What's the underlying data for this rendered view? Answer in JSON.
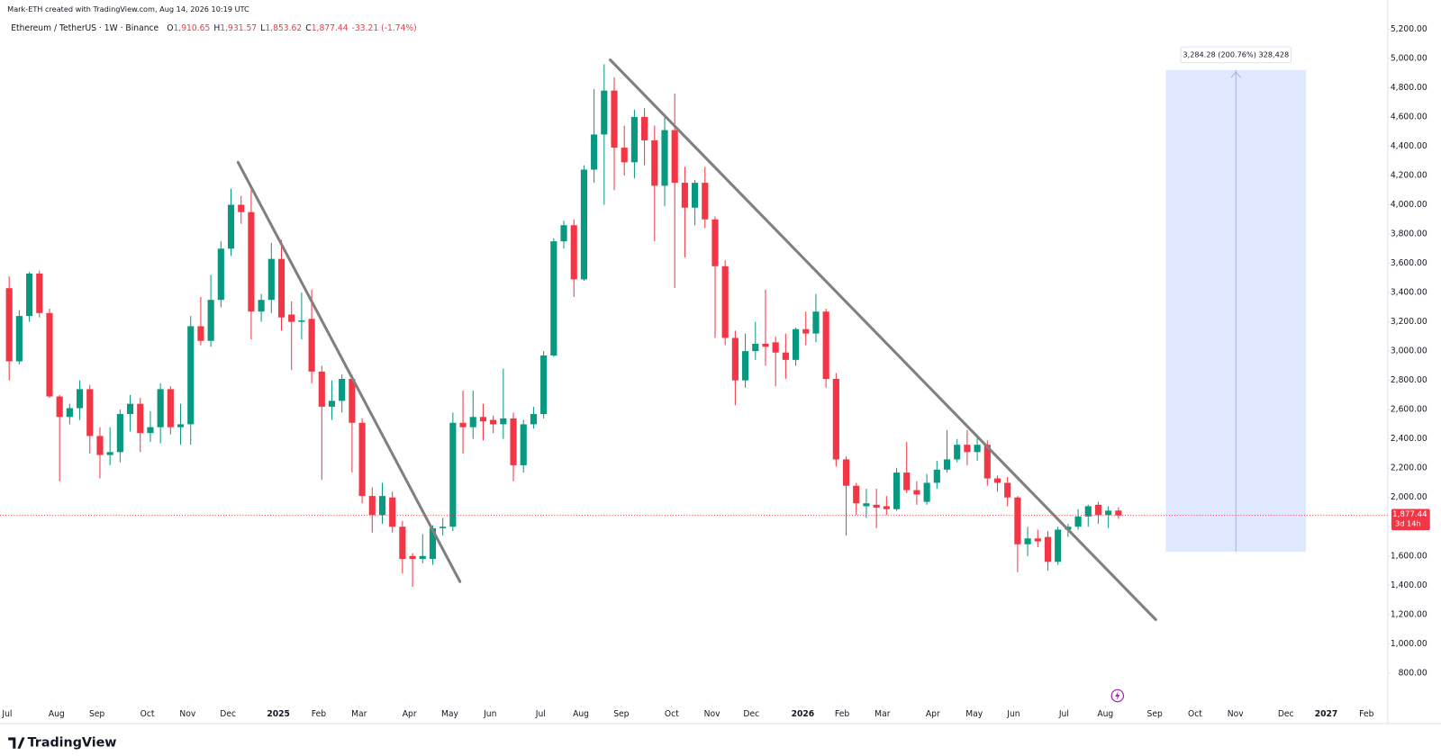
{
  "header": {
    "credit": "Mark-ETH created with TradingView.com, Aug 14, 2026 10:19 UTC",
    "symbol": "Ethereum / TetherUS · 1W · Binance",
    "ohlc": [
      {
        "label": "O",
        "value": "1,910.65"
      },
      {
        "label": "H",
        "value": "1,931.57"
      },
      {
        "label": "L",
        "value": "1,853.62"
      },
      {
        "label": "C",
        "value": "1,877.44"
      }
    ],
    "change": "-33.21 (-1.74%)"
  },
  "footer": {
    "logo": "TradingView"
  },
  "chart_data": {
    "type": "candlestick",
    "up_color": "#089981",
    "down_color": "#f23645",
    "grid": false,
    "open": [
      3430,
      2930,
      3240,
      3530,
      3260,
      2690,
      2550,
      2610,
      2740,
      2420,
      2290,
      2310,
      2570,
      2640,
      2440,
      2480,
      2740,
      2480,
      2500,
      3170,
      3070,
      3350,
      3700,
      4000,
      3950,
      3270,
      3350,
      3630,
      3250,
      3200,
      3220,
      2860,
      2620,
      2660,
      2810,
      2510,
      2010,
      1880,
      2000,
      1800,
      1600,
      1580,
      1580,
      1790,
      1800,
      2510,
      2480,
      2550,
      2530,
      2500,
      2540,
      2220,
      2500,
      2570,
      2970,
      3750,
      3860,
      3490,
      4240,
      4480,
      4780,
      4390,
      4290,
      4600,
      4440,
      4130,
      4510,
      4150,
      3980,
      4150,
      3900,
      3580,
      3090,
      2800,
      3000,
      3050,
      3060,
      2990,
      2940,
      3150,
      3120,
      3270,
      2810,
      2260,
      2080,
      1940,
      1950,
      1940,
      1920,
      2170,
      2050,
      1970,
      2100,
      2190,
      2260,
      2360,
      2310,
      2360,
      2130,
      2100,
      2000,
      1680,
      1720,
      1730,
      1560,
      1780,
      1800,
      1870,
      1950,
      1880,
      1910.65
    ],
    "high": [
      3510,
      3280,
      3540,
      3550,
      3290,
      2700,
      2640,
      2800,
      2770,
      2480,
      2480,
      2600,
      2700,
      2680,
      2590,
      2780,
      2760,
      2640,
      3240,
      3370,
      3520,
      3750,
      4110,
      4060,
      4100,
      3390,
      3740,
      3760,
      3340,
      3400,
      3420,
      2900,
      2800,
      2840,
      2840,
      2540,
      2070,
      2100,
      2040,
      1840,
      1620,
      1750,
      1810,
      1860,
      2580,
      2730,
      2730,
      2640,
      2560,
      2880,
      2580,
      2530,
      2620,
      3000,
      3770,
      3890,
      3900,
      4270,
      4790,
      4960,
      4870,
      4540,
      4650,
      4660,
      4540,
      4600,
      4760,
      4260,
      4170,
      4260,
      3920,
      3620,
      3140,
      3120,
      3200,
      3420,
      3100,
      3120,
      3160,
      3270,
      3390,
      3290,
      2850,
      2280,
      2100,
      2060,
      2060,
      2010,
      2200,
      2380,
      2110,
      2160,
      2250,
      2460,
      2400,
      2460,
      2430,
      2390,
      2150,
      2140,
      2010,
      1800,
      1780,
      1770,
      1800,
      1820,
      1920,
      1950,
      1970,
      1940,
      1931.57
    ],
    "low": [
      2800,
      2910,
      3200,
      3230,
      2680,
      2110,
      2500,
      2530,
      2300,
      2130,
      2220,
      2240,
      2450,
      2310,
      2380,
      2370,
      2430,
      2360,
      2360,
      3040,
      3030,
      3300,
      3650,
      3870,
      3080,
      3200,
      3260,
      3140,
      2870,
      3080,
      2780,
      2120,
      2530,
      2580,
      2170,
      1960,
      1760,
      1820,
      1760,
      1480,
      1390,
      1550,
      1540,
      1740,
      1770,
      2300,
      2400,
      2390,
      2440,
      2400,
      2110,
      2170,
      2470,
      2540,
      2960,
      3700,
      3370,
      3480,
      4150,
      4000,
      4100,
      4200,
      4180,
      4270,
      3750,
      3990,
      3430,
      3640,
      3860,
      3840,
      3090,
      3040,
      2630,
      2750,
      2940,
      2900,
      2760,
      2810,
      2900,
      3040,
      3060,
      2750,
      2210,
      1740,
      1880,
      1860,
      1790,
      1880,
      1910,
      2030,
      1950,
      1950,
      2060,
      2170,
      2240,
      2220,
      2250,
      2080,
      2040,
      1940,
      1490,
      1600,
      1660,
      1500,
      1540,
      1730,
      1780,
      1800,
      1820,
      1790,
      1853.62
    ],
    "close": [
      2930,
      3240,
      3530,
      3260,
      2690,
      2550,
      2610,
      2740,
      2420,
      2290,
      2310,
      2570,
      2640,
      2440,
      2480,
      2740,
      2480,
      2500,
      3170,
      3070,
      3350,
      3700,
      4000,
      3950,
      3270,
      3350,
      3630,
      3230,
      3200,
      3210,
      2860,
      2620,
      2660,
      2810,
      2510,
      2010,
      1880,
      2010,
      1800,
      1580,
      1580,
      1600,
      1790,
      1800,
      2510,
      2480,
      2550,
      2520,
      2500,
      2540,
      2220,
      2500,
      2570,
      2970,
      3750,
      3860,
      3490,
      4240,
      4480,
      4780,
      4390,
      4290,
      4600,
      4440,
      4130,
      4510,
      4150,
      3980,
      4150,
      3900,
      3580,
      3090,
      2800,
      3000,
      3050,
      3030,
      2990,
      2940,
      3150,
      3120,
      3270,
      2810,
      2260,
      2080,
      1960,
      1960,
      1930,
      1920,
      2170,
      2050,
      2020,
      2100,
      2190,
      2260,
      2360,
      2310,
      2360,
      2130,
      2100,
      2000,
      1680,
      1720,
      1700,
      1560,
      1780,
      1800,
      1870,
      1940,
      1880,
      1910,
      1877.44
    ],
    "xlim": [
      -0.91,
      136.7
    ],
    "ylim": [
      582,
      5399
    ],
    "xticks": [
      {
        "value": -0.2,
        "label": "Jul"
      },
      {
        "value": 4.7,
        "label": "Aug"
      },
      {
        "value": 8.7,
        "label": "Sep"
      },
      {
        "value": 13.7,
        "label": "Oct"
      },
      {
        "value": 17.7,
        "label": "Nov"
      },
      {
        "value": 21.7,
        "label": "Dec"
      },
      {
        "value": 26.7,
        "label": "2025"
      },
      {
        "value": 30.7,
        "label": "Feb"
      },
      {
        "value": 34.7,
        "label": "Mar"
      },
      {
        "value": 39.7,
        "label": "Apr"
      },
      {
        "value": 43.7,
        "label": "May"
      },
      {
        "value": 47.7,
        "label": "Jun"
      },
      {
        "value": 52.7,
        "label": "Jul"
      },
      {
        "value": 56.7,
        "label": "Aug"
      },
      {
        "value": 60.7,
        "label": "Sep"
      },
      {
        "value": 65.7,
        "label": "Oct"
      },
      {
        "value": 69.7,
        "label": "Nov"
      },
      {
        "value": 73.6,
        "label": "Dec"
      },
      {
        "value": 78.7,
        "label": "2026"
      },
      {
        "value": 82.6,
        "label": "Feb"
      },
      {
        "value": 86.6,
        "label": "Mar"
      },
      {
        "value": 91.6,
        "label": "Apr"
      },
      {
        "value": 95.7,
        "label": "May"
      },
      {
        "value": 99.6,
        "label": "Jun"
      },
      {
        "value": 104.6,
        "label": "Jul"
      },
      {
        "value": 108.7,
        "label": "Aug"
      },
      {
        "value": 113.6,
        "label": "Sep"
      },
      {
        "value": 117.6,
        "label": "Oct"
      },
      {
        "value": 121.6,
        "label": "Nov"
      },
      {
        "value": 126.6,
        "label": "Dec"
      },
      {
        "value": 130.6,
        "label": "2027"
      },
      {
        "value": 134.6,
        "label": "Feb"
      }
    ],
    "yticks": [
      {
        "value": 800,
        "label": "800.00"
      },
      {
        "value": 1000,
        "label": "1,000.00"
      },
      {
        "value": 1200,
        "label": "1,200.00"
      },
      {
        "value": 1400,
        "label": "1,400.00"
      },
      {
        "value": 1600,
        "label": "1,600.00"
      },
      {
        "value": 1800,
        "label": "1,800.00"
      },
      {
        "value": 2000,
        "label": "2,000.00"
      },
      {
        "value": 2200,
        "label": "2,200.00"
      },
      {
        "value": 2400,
        "label": "2,400.00"
      },
      {
        "value": 2600,
        "label": "2,600.00"
      },
      {
        "value": 2800,
        "label": "2,800.00"
      },
      {
        "value": 3000,
        "label": "3,000.00"
      },
      {
        "value": 3200,
        "label": "3,200.00"
      },
      {
        "value": 3400,
        "label": "3,400.00"
      },
      {
        "value": 3600,
        "label": "3,600.00"
      },
      {
        "value": 3800,
        "label": "3,800.00"
      },
      {
        "value": 4000,
        "label": "4,000.00"
      },
      {
        "value": 4200,
        "label": "4,200.00"
      },
      {
        "value": 4400,
        "label": "4,400.00"
      },
      {
        "value": 4600,
        "label": "4,600.00"
      },
      {
        "value": 4800,
        "label": "4,800.00"
      },
      {
        "value": 5000,
        "label": "5,000.00"
      },
      {
        "value": 5200,
        "label": "5,200.00"
      }
    ],
    "last_price": {
      "value": 1877.44,
      "label": "1,877.44",
      "countdown": "3d 14h"
    },
    "trendlines": [
      {
        "x": [
          22.7,
          44.7
        ],
        "y": [
          4290,
          1425
        ]
      },
      {
        "x": [
          59.6,
          113.7
        ],
        "y": [
          4990,
          1165
        ]
      }
    ],
    "measure": {
      "x": [
        114.7,
        128.6
      ],
      "y": [
        1630,
        4920
      ],
      "label": "3,284.28 (200.76%) 328,428"
    }
  }
}
